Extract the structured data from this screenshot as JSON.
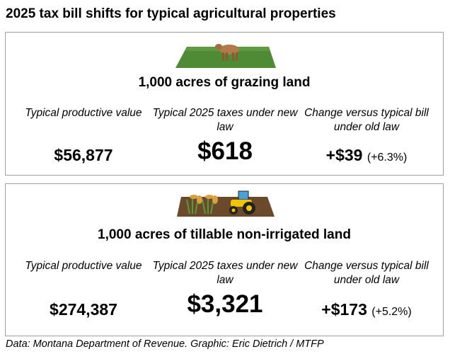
{
  "title": "2025 tax bill shifts for typical agricultural properties",
  "panels": [
    {
      "icon": "grazing-field-cow-icon",
      "heading": "1,000 acres of grazing land",
      "labels": [
        "Typical productive value",
        "Typical 2025 taxes under new law",
        "Change versus typical bill under old law"
      ],
      "productive_value": "$56,877",
      "taxes_2025": "$618",
      "change": "+$39",
      "change_pct": "(+6.3%)"
    },
    {
      "icon": "farm-field-wheat-tractor-icon",
      "heading": "1,000 acres of tillable non-irrigated land",
      "labels": [
        "Typical productive value",
        "Typical 2025 taxes under new law",
        "Change versus typical bill under old law"
      ],
      "productive_value": "$274,387",
      "taxes_2025": "$3,321",
      "change": "+$173",
      "change_pct": "(+5.2%)"
    }
  ],
  "source": "Data: Montana Department of Revenue. Graphic: Eric Dietrich / MTFP",
  "colors": {
    "grass": "#4f8a35",
    "soil": "#6b4a2b",
    "tractor": "#f2c400",
    "border": "#a0a0a0"
  }
}
